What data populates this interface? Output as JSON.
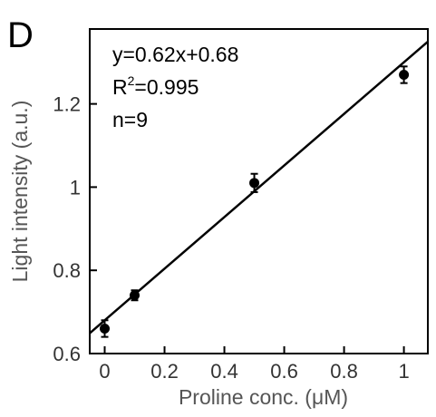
{
  "panel_label": "D",
  "chart_data": {
    "type": "scatter",
    "xlabel": "Proline conc. (μM)",
    "ylabel": "Light intensity (a.u.)",
    "xlim": [
      -0.05,
      1.08
    ],
    "ylim": [
      0.6,
      1.38
    ],
    "x_ticks": [
      0,
      0.2,
      0.4,
      0.6,
      0.8,
      1
    ],
    "x_tick_labels": [
      "0",
      "0.2",
      "0.4",
      "0.6",
      "0.8",
      "1"
    ],
    "y_ticks": [
      0.6,
      0.8,
      1.0,
      1.2
    ],
    "y_tick_labels": [
      "0.6",
      "0.8",
      "1",
      "1.2"
    ],
    "grid": false,
    "points": [
      {
        "x": 0,
        "y": 0.66,
        "err": 0.02
      },
      {
        "x": 0.1,
        "y": 0.74,
        "err": 0.012
      },
      {
        "x": 0.5,
        "y": 1.01,
        "err": 0.022
      },
      {
        "x": 1,
        "y": 1.27,
        "err": 0.02
      }
    ],
    "fit": {
      "slope": 0.62,
      "intercept": 0.68
    },
    "annotations": {
      "equation": "y=0.62x+0.68",
      "r2_prefix": "R",
      "r2_sup": "2",
      "r2_value": "=0.995",
      "n": "n=9"
    }
  }
}
